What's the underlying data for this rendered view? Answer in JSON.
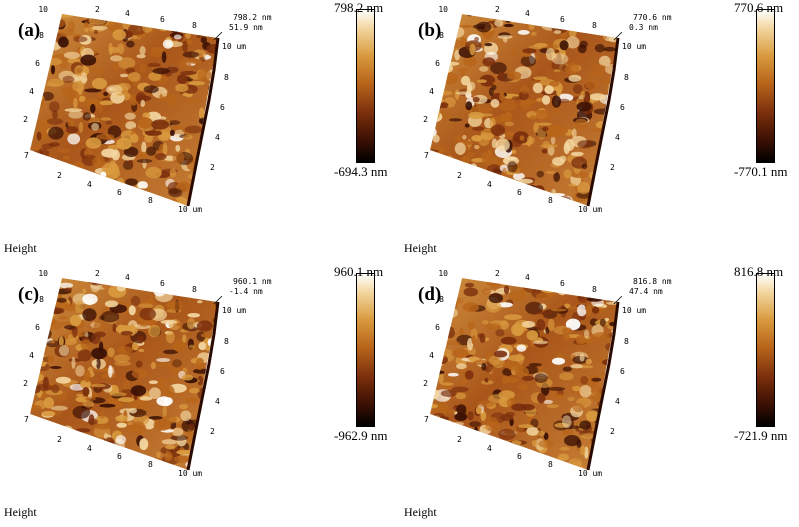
{
  "panels": [
    {
      "label": "(a)",
      "max": "798.2 nm",
      "min": "-694.3 nm",
      "zmax": "798.2 nm",
      "zmid": "51.9 nm",
      "zaxis": "10 um",
      "height_label": "Height"
    },
    {
      "label": "(b)",
      "max": "770.6 nm",
      "min": "-770.1 nm",
      "zmax": "770.6 nm",
      "zmid": "0.3 nm",
      "zaxis": "10 um",
      "height_label": "Height"
    },
    {
      "label": "(c)",
      "max": "960.1 nm",
      "min": "-962.9 nm",
      "zmax": "960.1 nm",
      "zmid": "-1.4 nm",
      "zaxis": "10 um",
      "height_label": "Height"
    },
    {
      "label": "(d)",
      "max": "816.8 nm",
      "min": "-721.9 nm",
      "zmax": "816.8 nm",
      "zmid": "47.4 nm",
      "zaxis": "10 um",
      "height_label": "Height"
    }
  ],
  "axes": {
    "left_ticks": [
      "10",
      "8",
      "6",
      "4",
      "2"
    ],
    "front_ticks": [
      "2",
      "4",
      "6",
      "8",
      "10 um"
    ],
    "right_ticks": [
      "8",
      "6",
      "4",
      "2"
    ],
    "top_ticks": [
      "2",
      "4",
      "6",
      "8"
    ],
    "origin_tick": "7"
  },
  "colors": {
    "colormap": [
      "#000000",
      "#3a1004",
      "#7a2e0c",
      "#b8651a",
      "#d99a3e",
      "#f3d6a0",
      "#ffffff"
    ]
  }
}
